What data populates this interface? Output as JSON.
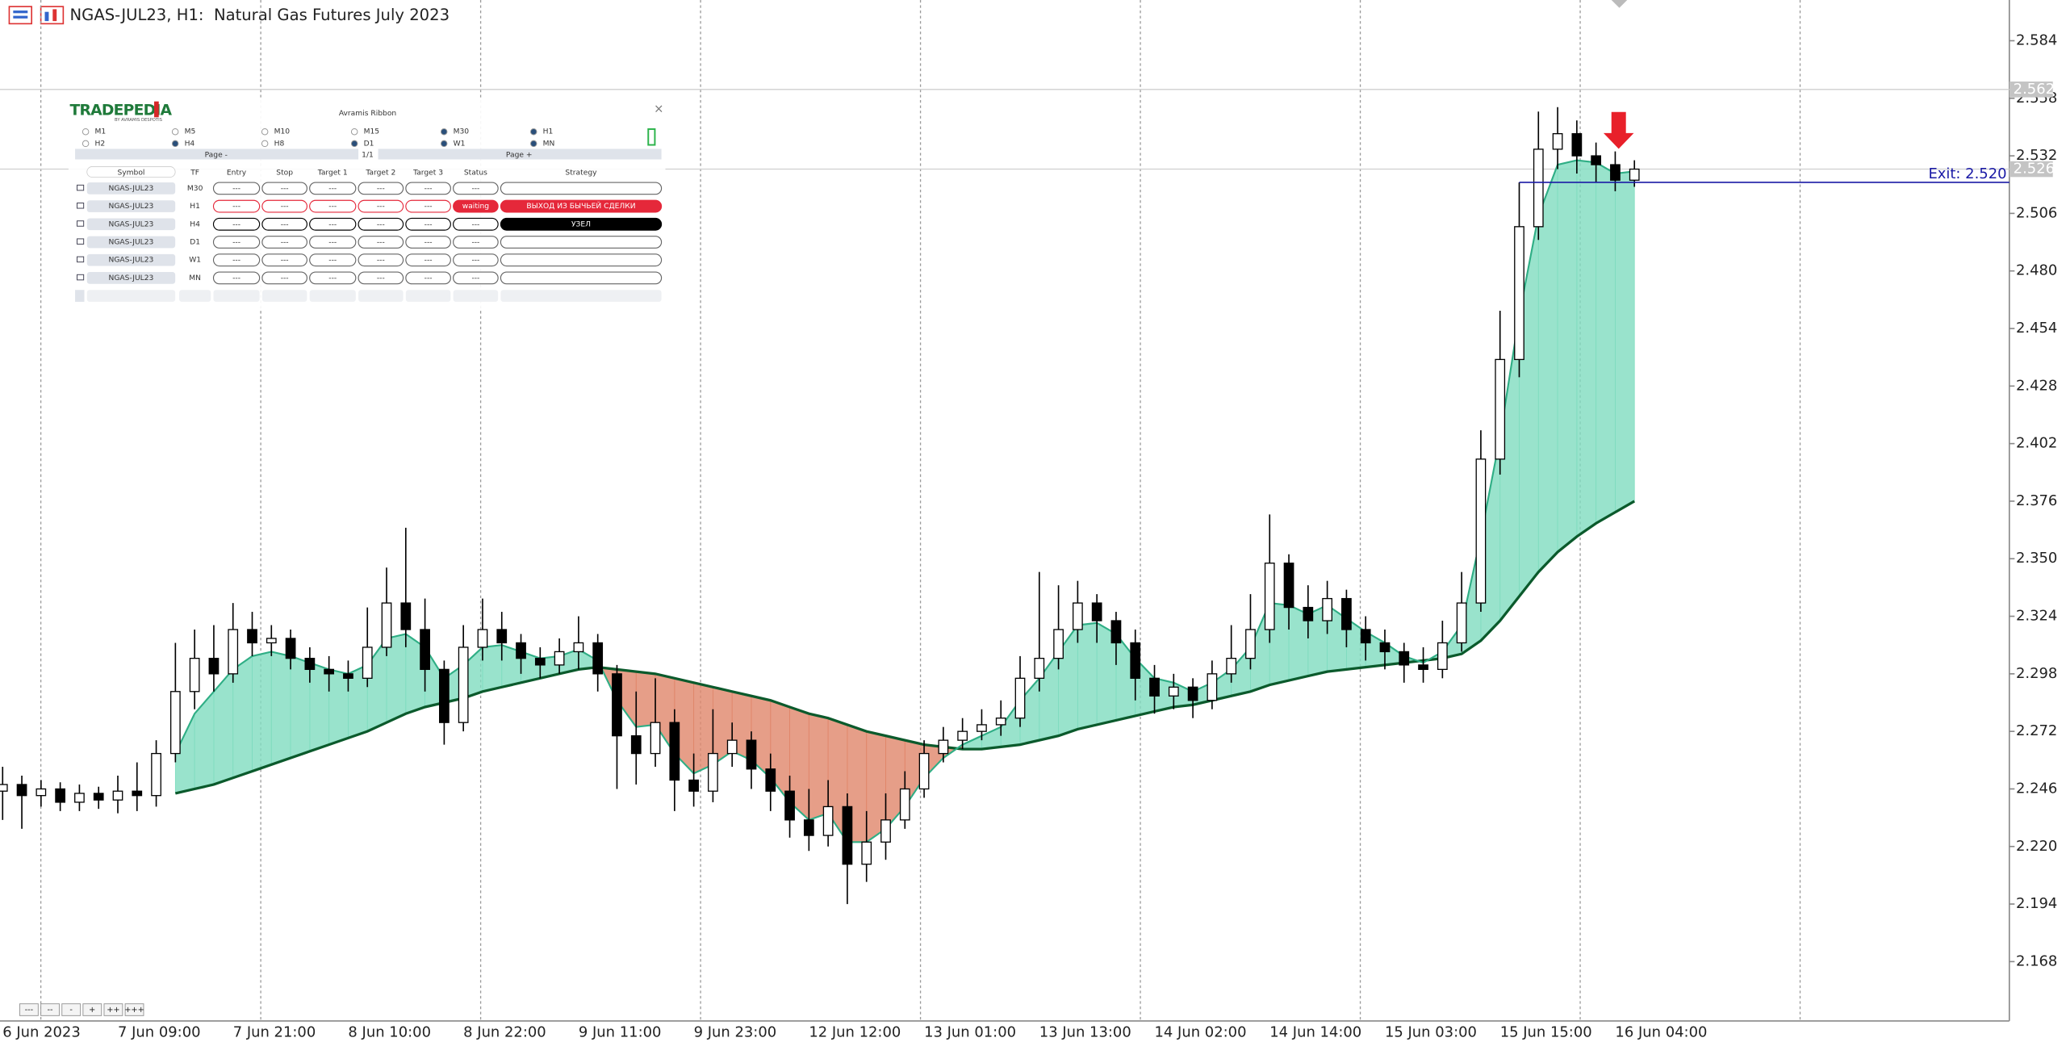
{
  "chart_data": {
    "type": "candlestick",
    "title": "NGAS-JUL23, H1:  Natural Gas Futures July 2023",
    "categories": [
      "6 Jun 2023",
      null,
      null,
      null,
      null,
      null,
      "7 Jun 09:00",
      null,
      null,
      null,
      null,
      null,
      "7 Jun 21:00",
      null,
      null,
      null,
      null,
      null,
      "8 Jun 10:00",
      null,
      null,
      null,
      null,
      null,
      "8 Jun 22:00",
      null,
      null,
      null,
      null,
      null,
      "9 Jun 11:00",
      null,
      null,
      null,
      null,
      null,
      "9 Jun 23:00",
      null,
      null,
      null,
      null,
      null,
      "12 Jun 12:00",
      null,
      null,
      null,
      null,
      null,
      "13 Jun 01:00",
      null,
      null,
      null,
      null,
      null,
      "13 Jun 13:00",
      null,
      null,
      null,
      null,
      null,
      "14 Jun 02:00",
      null,
      null,
      null,
      null,
      null,
      "14 Jun 14:00",
      null,
      null,
      null,
      null,
      null,
      "15 Jun 03:00",
      null,
      null,
      null,
      null,
      null,
      "15 Jun 15:00",
      null,
      null,
      null,
      null,
      null,
      "16 Jun 04:00",
      null
    ],
    "open": [
      2.245,
      2.248,
      2.243,
      2.246,
      2.24,
      2.244,
      2.241,
      2.245,
      2.243,
      2.262,
      2.29,
      2.305,
      2.298,
      2.318,
      2.312,
      2.314,
      2.305,
      2.3,
      2.298,
      2.296,
      2.31,
      2.33,
      2.318,
      2.3,
      2.276,
      2.31,
      2.318,
      2.312,
      2.305,
      2.302,
      2.308,
      2.312,
      2.298,
      2.27,
      2.262,
      2.276,
      2.25,
      2.245,
      2.262,
      2.268,
      2.255,
      2.245,
      2.232,
      2.225,
      2.238,
      2.212,
      2.222,
      2.232,
      2.246,
      2.262,
      2.268,
      2.272,
      2.275,
      2.278,
      2.296,
      2.305,
      2.318,
      2.33,
      2.322,
      2.312,
      2.296,
      2.288,
      2.292,
      2.286,
      2.298,
      2.305,
      2.318,
      2.348,
      2.328,
      2.322,
      2.332,
      2.318,
      2.312,
      2.308,
      2.302,
      2.3,
      2.312,
      2.33,
      2.395,
      2.44,
      2.5,
      2.535,
      2.542,
      2.532,
      2.528,
      2.521
    ],
    "high": [
      2.256,
      2.252,
      2.25,
      2.249,
      2.248,
      2.247,
      2.252,
      2.258,
      2.268,
      2.312,
      2.318,
      2.32,
      2.33,
      2.326,
      2.32,
      2.318,
      2.31,
      2.306,
      2.304,
      2.328,
      2.346,
      2.364,
      2.332,
      2.304,
      2.32,
      2.332,
      2.326,
      2.316,
      2.31,
      2.314,
      2.324,
      2.316,
      2.302,
      2.29,
      2.296,
      2.282,
      2.262,
      2.282,
      2.276,
      2.272,
      2.262,
      2.252,
      2.246,
      2.25,
      2.244,
      2.236,
      2.244,
      2.254,
      2.268,
      2.274,
      2.278,
      2.282,
      2.286,
      2.306,
      2.344,
      2.338,
      2.34,
      2.334,
      2.326,
      2.318,
      2.302,
      2.298,
      2.296,
      2.304,
      2.32,
      2.334,
      2.37,
      2.352,
      2.338,
      2.34,
      2.336,
      2.324,
      2.318,
      2.312,
      2.31,
      2.322,
      2.344,
      2.408,
      2.462,
      2.52,
      2.552,
      2.554,
      2.548,
      2.538,
      2.534,
      2.53
    ],
    "low": [
      2.232,
      2.228,
      2.238,
      2.236,
      2.236,
      2.237,
      2.235,
      2.236,
      2.238,
      2.258,
      2.282,
      2.29,
      2.294,
      2.306,
      2.306,
      2.3,
      2.294,
      2.29,
      2.29,
      2.292,
      2.306,
      2.31,
      2.29,
      2.266,
      2.272,
      2.304,
      2.304,
      2.298,
      2.296,
      2.298,
      2.3,
      2.29,
      2.246,
      2.248,
      2.256,
      2.236,
      2.238,
      2.24,
      2.256,
      2.246,
      2.236,
      2.224,
      2.218,
      2.22,
      2.194,
      2.204,
      2.214,
      2.228,
      2.242,
      2.258,
      2.264,
      2.268,
      2.27,
      2.274,
      2.29,
      2.3,
      2.312,
      2.312,
      2.302,
      2.286,
      2.28,
      2.282,
      2.278,
      2.282,
      2.294,
      2.3,
      2.312,
      2.318,
      2.314,
      2.316,
      2.31,
      2.304,
      2.3,
      2.294,
      2.294,
      2.296,
      2.308,
      2.326,
      2.388,
      2.432,
      2.494,
      2.526,
      2.524,
      2.52,
      2.516,
      2.518
    ],
    "close": [
      2.248,
      2.243,
      2.246,
      2.24,
      2.244,
      2.241,
      2.245,
      2.243,
      2.262,
      2.29,
      2.305,
      2.298,
      2.318,
      2.312,
      2.314,
      2.305,
      2.3,
      2.298,
      2.296,
      2.31,
      2.33,
      2.318,
      2.3,
      2.276,
      2.31,
      2.318,
      2.312,
      2.305,
      2.302,
      2.308,
      2.312,
      2.298,
      2.27,
      2.262,
      2.276,
      2.25,
      2.245,
      2.262,
      2.268,
      2.255,
      2.245,
      2.232,
      2.225,
      2.238,
      2.212,
      2.222,
      2.232,
      2.246,
      2.262,
      2.268,
      2.272,
      2.275,
      2.278,
      2.296,
      2.305,
      2.318,
      2.33,
      2.322,
      2.312,
      2.296,
      2.288,
      2.292,
      2.286,
      2.298,
      2.305,
      2.318,
      2.348,
      2.328,
      2.322,
      2.332,
      2.318,
      2.312,
      2.308,
      2.302,
      2.3,
      2.312,
      2.33,
      2.395,
      2.44,
      2.5,
      2.535,
      2.542,
      2.532,
      2.528,
      2.521,
      2.526
    ],
    "ribbon": {
      "bull_color": "#7fdcbf",
      "bear_color": "#e0866a",
      "fast_color": "#2fae85",
      "slow_color": "#0b5a2c",
      "fast": [
        null,
        null,
        null,
        null,
        null,
        null,
        null,
        null,
        null,
        2.262,
        2.28,
        2.29,
        2.3,
        2.306,
        2.308,
        2.306,
        2.303,
        2.3,
        2.298,
        2.302,
        2.314,
        2.316,
        2.31,
        2.296,
        2.302,
        2.31,
        2.311,
        2.308,
        2.305,
        2.306,
        2.309,
        2.304,
        2.286,
        2.274,
        2.275,
        2.262,
        2.253,
        2.257,
        2.263,
        2.259,
        2.251,
        2.24,
        2.232,
        2.235,
        2.222,
        2.222,
        2.228,
        2.238,
        2.251,
        2.26,
        2.266,
        2.27,
        2.274,
        2.286,
        2.296,
        2.308,
        2.32,
        2.321,
        2.316,
        2.305,
        2.296,
        2.294,
        2.29,
        2.294,
        2.3,
        2.31,
        2.33,
        2.329,
        2.325,
        2.329,
        2.323,
        2.317,
        2.312,
        2.306,
        2.303,
        2.308,
        2.32,
        2.36,
        2.405,
        2.46,
        2.505,
        2.528,
        2.53,
        2.529,
        2.524,
        2.525
      ],
      "slow": [
        null,
        null,
        null,
        null,
        null,
        null,
        null,
        null,
        null,
        2.244,
        2.246,
        2.248,
        2.251,
        2.254,
        2.257,
        2.26,
        2.263,
        2.266,
        2.269,
        2.272,
        2.276,
        2.28,
        2.283,
        2.285,
        2.287,
        2.29,
        2.292,
        2.294,
        2.296,
        2.298,
        2.3,
        2.301,
        2.3,
        2.299,
        2.298,
        2.296,
        2.294,
        2.292,
        2.29,
        2.288,
        2.286,
        2.283,
        2.28,
        2.278,
        2.275,
        2.272,
        2.27,
        2.268,
        2.266,
        2.265,
        2.264,
        2.264,
        2.265,
        2.266,
        2.268,
        2.27,
        2.273,
        2.275,
        2.277,
        2.279,
        2.281,
        2.283,
        2.284,
        2.286,
        2.288,
        2.29,
        2.293,
        2.295,
        2.297,
        2.299,
        2.3,
        2.301,
        2.302,
        2.303,
        2.304,
        2.305,
        2.307,
        2.313,
        2.322,
        2.333,
        2.344,
        2.353,
        2.36,
        2.366,
        2.371,
        2.376
      ]
    },
    "ylim": [
      2.1412,
      2.6024
    ],
    "yticks": [
      2.584,
      2.558,
      2.532,
      2.506,
      {
        "value": 2.48,
        "label": "2.480"
      },
      2.454,
      2.428,
      2.402,
      2.376,
      {
        "value": 2.35,
        "label": "2.350"
      },
      2.324,
      2.298,
      2.272,
      2.246,
      {
        "value": 2.22,
        "label": "2.220"
      },
      2.194,
      2.168
    ],
    "price_marks": [
      2.562,
      2.526
    ],
    "exit_level": 2.52,
    "exit_label": "Exit: 2.520",
    "exit_color": "#1a1aa6",
    "bull_color": "#ffffff",
    "bear_color": "#000000",
    "zoom_buttons": [
      "---",
      "--",
      "-",
      "+",
      "++",
      "+++"
    ]
  },
  "panel": {
    "logo": "TRADEPEDIA",
    "logo_tagline": "BY AVRAMIS DESPOTIS",
    "title": "Avramis Ribbon",
    "close": "×",
    "timeframes": [
      {
        "label": "M1",
        "checked": false
      },
      {
        "label": "M5",
        "checked": false
      },
      {
        "label": "M10",
        "checked": false
      },
      {
        "label": "M15",
        "checked": false
      },
      {
        "label": "M30",
        "checked": true
      },
      {
        "label": "H1",
        "checked": true
      },
      {
        "label": "H2",
        "checked": false
      },
      {
        "label": "H4",
        "checked": true
      },
      {
        "label": "H8",
        "checked": false
      },
      {
        "label": "D1",
        "checked": true
      },
      {
        "label": "W1",
        "checked": true
      },
      {
        "label": "MN",
        "checked": true
      }
    ],
    "page_prev": "Page -",
    "page_info": "1/1",
    "page_next": "Page +",
    "columns": [
      "Symbol",
      "TF",
      "Entry",
      "Stop",
      "Target 1",
      "Target 2",
      "Target 3",
      "Status",
      "Strategy"
    ],
    "rows": [
      {
        "cells": [
          "NGAS-JUL23",
          "M30",
          "---",
          "---",
          "---",
          "---",
          "---",
          "---"
        ]
      },
      {
        "cells": [
          "NGAS-JUL23",
          "H1",
          "---",
          "---",
          "---",
          "---",
          "---",
          "waiting"
        ],
        "strategy": "ВЫХОД ИЗ БЫЧЬЕЙ СДЕЛКИ",
        "accent": "#e5283a"
      },
      {
        "cells": [
          "NGAS-JUL23",
          "H4",
          "---",
          "---",
          "---",
          "---",
          "---",
          "---"
        ],
        "strategy": "УЗЕЛ",
        "accent": "#000000"
      },
      {
        "cells": [
          "NGAS-JUL23",
          "D1",
          "---",
          "---",
          "---",
          "---",
          "---",
          "---"
        ]
      },
      {
        "cells": [
          "NGAS-JUL23",
          "W1",
          "---",
          "---",
          "---",
          "---",
          "---",
          "---"
        ]
      },
      {
        "cells": [
          "NGAS-JUL23",
          "MN",
          "---",
          "---",
          "---",
          "---",
          "---",
          "---"
        ]
      }
    ]
  }
}
